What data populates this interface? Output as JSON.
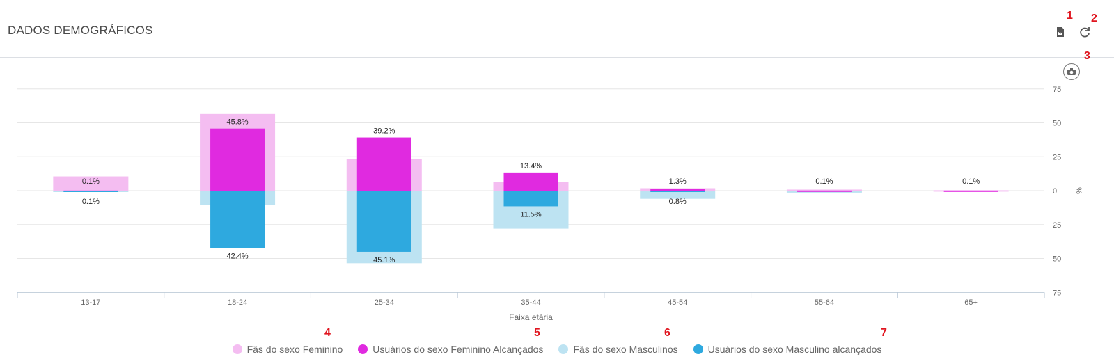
{
  "header": {
    "title": "DADOS DEMOGRÁFICOS"
  },
  "toolbar": {
    "export_icon": "pdf-export-icon",
    "refresh_icon": "refresh-icon",
    "camera_icon": "camera-icon"
  },
  "markers": [
    "1",
    "2",
    "3",
    "4",
    "5",
    "6",
    "7"
  ],
  "colors": {
    "female_fans": "#f4bdf1",
    "female_reached": "#e02ae0",
    "male_fans": "#bde3f2",
    "male_reached": "#2ea9df",
    "grid": "#e6e6e6",
    "axis_text": "#666666"
  },
  "chart_data": {
    "type": "bar",
    "xlabel": "Faixa etária",
    "ylabel": "%",
    "ylim": [
      -75,
      75
    ],
    "y_ticks": [
      75,
      50,
      25,
      0,
      -25,
      -50,
      -75
    ],
    "y_tick_labels": [
      "75",
      "50",
      "25",
      "0",
      "25",
      "50",
      "75"
    ],
    "categories": [
      "13-17",
      "18-24",
      "25-34",
      "35-44",
      "45-54",
      "55-64",
      "65+"
    ],
    "series": [
      {
        "name": "Fãs do sexo Feminino",
        "values": [
          10.5,
          56.5,
          23.5,
          6.5,
          1.8,
          0.8,
          0.3
        ]
      },
      {
        "name": "Usuários do sexo Feminino Alcançados",
        "values": [
          0.1,
          45.8,
          39.2,
          13.4,
          1.3,
          0.1,
          0.1
        ]
      },
      {
        "name": "Fãs do sexo Masculinos",
        "values": [
          -0.3,
          -10.5,
          -53.5,
          -28.0,
          -6.0,
          -1.5,
          0
        ]
      },
      {
        "name": "Usuários do sexo Masculino alcançados",
        "values": [
          -0.1,
          -42.4,
          -45.1,
          -11.5,
          -0.8,
          0,
          0
        ]
      }
    ],
    "data_labels": {
      "female_reached": [
        "0.1%",
        "45.8%",
        "39.2%",
        "13.4%",
        "1.3%",
        "0.1%",
        "0.1%"
      ],
      "male_reached": [
        "0.1%",
        "42.4%",
        "45.1%",
        "11.5%",
        "0.8%",
        "",
        ""
      ]
    },
    "grid": true,
    "legend_position": "bottom"
  }
}
